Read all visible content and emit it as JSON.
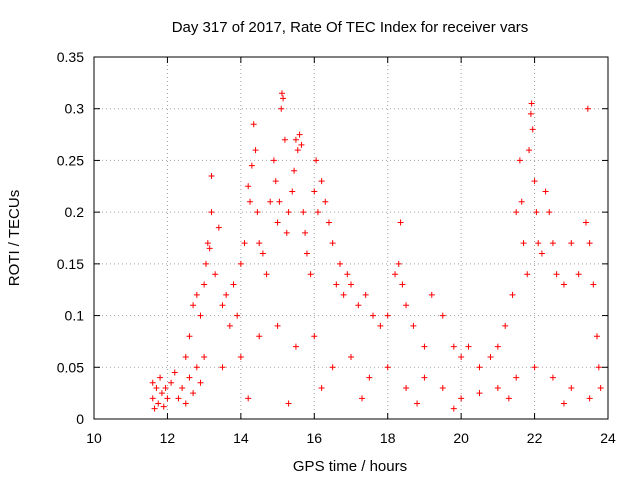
{
  "chart_data": {
    "type": "scatter",
    "title": "Day 317 of 2017, Rate Of TEC Index for receiver vars",
    "xlabel": "GPS time / hours",
    "ylabel": "ROTI / TECUs",
    "xlim": [
      10,
      24
    ],
    "ylim": [
      0,
      0.35
    ],
    "x_ticks": [
      10,
      12,
      14,
      16,
      18,
      20,
      22,
      24
    ],
    "x_tick_labels": [
      "10",
      "12",
      "14",
      "16",
      "18",
      "20",
      "22",
      "24"
    ],
    "y_ticks": [
      0,
      0.05,
      0.1,
      0.15,
      0.2,
      0.25,
      0.3,
      0.35
    ],
    "y_tick_labels": [
      "0",
      "0.05",
      "0.1",
      "0.15",
      "0.2",
      "0.25",
      "0.3",
      "0.35"
    ],
    "grid": true,
    "marker": "+",
    "series": [
      {
        "name": "vars",
        "color": "#ff0000",
        "points": [
          [
            11.6,
            0.02
          ],
          [
            11.6,
            0.035
          ],
          [
            11.65,
            0.01
          ],
          [
            11.7,
            0.03
          ],
          [
            11.75,
            0.015
          ],
          [
            11.8,
            0.04
          ],
          [
            11.85,
            0.025
          ],
          [
            11.9,
            0.012
          ],
          [
            11.95,
            0.03
          ],
          [
            12.0,
            0.02
          ],
          [
            12.1,
            0.035
          ],
          [
            12.2,
            0.045
          ],
          [
            12.3,
            0.02
          ],
          [
            12.4,
            0.03
          ],
          [
            12.5,
            0.015
          ],
          [
            12.6,
            0.04
          ],
          [
            12.7,
            0.025
          ],
          [
            12.8,
            0.05
          ],
          [
            12.9,
            0.035
          ],
          [
            13.0,
            0.06
          ],
          [
            12.5,
            0.06
          ],
          [
            12.6,
            0.08
          ],
          [
            12.7,
            0.11
          ],
          [
            12.8,
            0.12
          ],
          [
            12.9,
            0.1
          ],
          [
            13.0,
            0.13
          ],
          [
            13.05,
            0.15
          ],
          [
            13.1,
            0.17
          ],
          [
            13.15,
            0.165
          ],
          [
            13.2,
            0.235
          ],
          [
            13.2,
            0.2
          ],
          [
            13.3,
            0.14
          ],
          [
            13.4,
            0.185
          ],
          [
            13.5,
            0.11
          ],
          [
            13.6,
            0.12
          ],
          [
            13.7,
            0.09
          ],
          [
            13.8,
            0.13
          ],
          [
            13.9,
            0.1
          ],
          [
            14.0,
            0.15
          ],
          [
            14.1,
            0.17
          ],
          [
            14.2,
            0.225
          ],
          [
            14.25,
            0.21
          ],
          [
            14.3,
            0.245
          ],
          [
            14.35,
            0.285
          ],
          [
            14.4,
            0.26
          ],
          [
            14.45,
            0.2
          ],
          [
            14.5,
            0.17
          ],
          [
            14.6,
            0.16
          ],
          [
            14.7,
            0.14
          ],
          [
            14.8,
            0.21
          ],
          [
            14.9,
            0.25
          ],
          [
            14.95,
            0.23
          ],
          [
            15.0,
            0.19
          ],
          [
            15.05,
            0.21
          ],
          [
            15.1,
            0.3
          ],
          [
            15.12,
            0.315
          ],
          [
            15.15,
            0.31
          ],
          [
            15.2,
            0.27
          ],
          [
            15.25,
            0.18
          ],
          [
            15.3,
            0.2
          ],
          [
            15.4,
            0.22
          ],
          [
            15.45,
            0.24
          ],
          [
            15.5,
            0.27
          ],
          [
            15.55,
            0.26
          ],
          [
            15.6,
            0.275
          ],
          [
            15.65,
            0.265
          ],
          [
            15.7,
            0.2
          ],
          [
            15.75,
            0.18
          ],
          [
            15.8,
            0.16
          ],
          [
            15.9,
            0.14
          ],
          [
            16.0,
            0.22
          ],
          [
            16.05,
            0.25
          ],
          [
            16.1,
            0.2
          ],
          [
            16.2,
            0.23
          ],
          [
            16.3,
            0.21
          ],
          [
            16.4,
            0.19
          ],
          [
            16.5,
            0.17
          ],
          [
            16.6,
            0.13
          ],
          [
            16.7,
            0.15
          ],
          [
            16.8,
            0.12
          ],
          [
            16.9,
            0.14
          ],
          [
            17.0,
            0.13
          ],
          [
            17.2,
            0.11
          ],
          [
            17.4,
            0.12
          ],
          [
            17.6,
            0.1
          ],
          [
            17.8,
            0.09
          ],
          [
            18.0,
            0.1
          ],
          [
            18.2,
            0.14
          ],
          [
            18.3,
            0.15
          ],
          [
            18.35,
            0.19
          ],
          [
            18.4,
            0.13
          ],
          [
            18.5,
            0.11
          ],
          [
            18.7,
            0.09
          ],
          [
            19.0,
            0.07
          ],
          [
            19.2,
            0.12
          ],
          [
            19.5,
            0.1
          ],
          [
            19.8,
            0.07
          ],
          [
            20.0,
            0.06
          ],
          [
            20.2,
            0.07
          ],
          [
            20.5,
            0.05
          ],
          [
            20.8,
            0.06
          ],
          [
            21.0,
            0.07
          ],
          [
            21.2,
            0.09
          ],
          [
            21.4,
            0.12
          ],
          [
            21.5,
            0.2
          ],
          [
            21.6,
            0.25
          ],
          [
            21.65,
            0.21
          ],
          [
            21.7,
            0.17
          ],
          [
            21.8,
            0.14
          ],
          [
            21.85,
            0.26
          ],
          [
            21.9,
            0.295
          ],
          [
            21.92,
            0.305
          ],
          [
            21.95,
            0.28
          ],
          [
            22.0,
            0.23
          ],
          [
            22.05,
            0.2
          ],
          [
            22.1,
            0.17
          ],
          [
            22.2,
            0.16
          ],
          [
            22.3,
            0.22
          ],
          [
            22.4,
            0.2
          ],
          [
            22.5,
            0.17
          ],
          [
            22.6,
            0.14
          ],
          [
            22.8,
            0.13
          ],
          [
            23.0,
            0.17
          ],
          [
            23.2,
            0.14
          ],
          [
            23.4,
            0.19
          ],
          [
            23.45,
            0.3
          ],
          [
            23.5,
            0.17
          ],
          [
            23.6,
            0.13
          ],
          [
            23.7,
            0.08
          ],
          [
            23.75,
            0.05
          ],
          [
            13.5,
            0.05
          ],
          [
            14.0,
            0.06
          ],
          [
            14.5,
            0.08
          ],
          [
            15.0,
            0.09
          ],
          [
            15.5,
            0.07
          ],
          [
            16.0,
            0.08
          ],
          [
            16.5,
            0.05
          ],
          [
            17.0,
            0.06
          ],
          [
            17.5,
            0.04
          ],
          [
            18.0,
            0.05
          ],
          [
            18.5,
            0.03
          ],
          [
            19.0,
            0.04
          ],
          [
            19.5,
            0.03
          ],
          [
            20.0,
            0.02
          ],
          [
            20.5,
            0.025
          ],
          [
            21.0,
            0.03
          ],
          [
            21.5,
            0.04
          ],
          [
            22.0,
            0.05
          ],
          [
            22.5,
            0.04
          ],
          [
            23.0,
            0.03
          ],
          [
            23.5,
            0.02
          ],
          [
            23.8,
            0.03
          ],
          [
            14.2,
            0.02
          ],
          [
            15.3,
            0.015
          ],
          [
            16.2,
            0.03
          ],
          [
            17.3,
            0.02
          ],
          [
            18.8,
            0.015
          ],
          [
            19.8,
            0.01
          ],
          [
            21.3,
            0.02
          ],
          [
            22.8,
            0.015
          ]
        ]
      }
    ]
  }
}
